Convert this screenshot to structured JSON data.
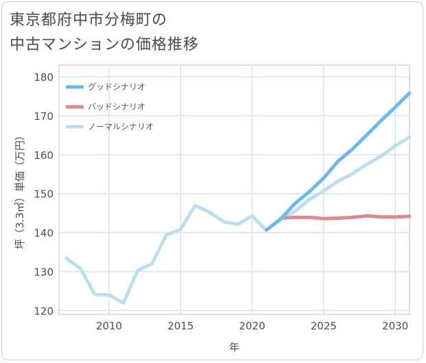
{
  "title_line1": "東京都府中市分梅町の",
  "title_line2": "中古マンションの価格推移",
  "chart_data": {
    "type": "line",
    "xlabel": "年",
    "ylabel": "坪（3.3㎡）単価（万円）",
    "xlim": [
      2006.5,
      2031
    ],
    "ylim": [
      119,
      183
    ],
    "x_ticks": [
      2010,
      2015,
      2020,
      2025,
      2030
    ],
    "y_ticks": [
      120,
      130,
      140,
      150,
      160,
      170,
      180
    ],
    "grid": true,
    "legend_position": "top-left",
    "series": [
      {
        "name": "グッドシナリオ",
        "color": "#6bb8ee",
        "x": [
          2021,
          2022,
          2023,
          2024,
          2025,
          2026,
          2027,
          2028,
          2029,
          2030,
          2031
        ],
        "values": [
          140.7,
          143.5,
          147.5,
          150.5,
          154.0,
          158.3,
          161.4,
          165.0,
          168.7,
          172.2,
          175.8
        ]
      },
      {
        "name": "バッドシナリオ",
        "color": "#dd8a8f",
        "x": [
          2022,
          2023,
          2024,
          2025,
          2026,
          2027,
          2028,
          2029,
          2030,
          2031
        ],
        "values": [
          143.7,
          143.9,
          143.9,
          143.6,
          143.7,
          143.9,
          144.3,
          144.0,
          144.0,
          144.2
        ]
      },
      {
        "name": "ノーマルシナリオ",
        "color": "#bcdff0",
        "x": [
          2007,
          2008,
          2009,
          2010,
          2011,
          2012,
          2013,
          2014,
          2015,
          2016,
          2017,
          2018,
          2019,
          2020,
          2021,
          2022,
          2023,
          2024,
          2025,
          2026,
          2027,
          2028,
          2029,
          2030,
          2031
        ],
        "values": [
          133.4,
          130.8,
          124.1,
          124.0,
          121.9,
          130.3,
          132.0,
          139.4,
          140.8,
          146.9,
          145.3,
          142.8,
          142.1,
          144.3,
          140.6,
          143.5,
          145.5,
          148.5,
          150.7,
          153.2,
          155.1,
          157.5,
          159.6,
          162.3,
          164.5
        ]
      }
    ]
  }
}
